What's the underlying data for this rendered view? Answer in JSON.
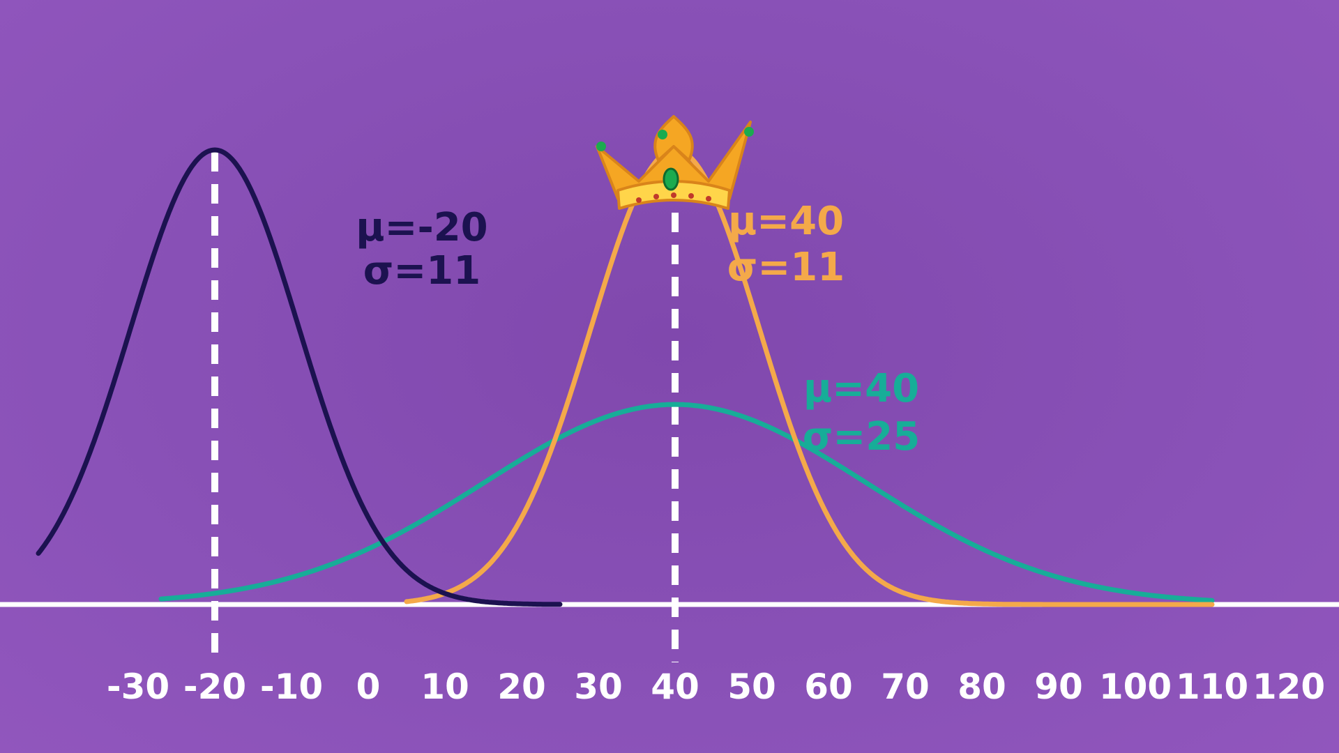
{
  "chart_data": {
    "type": "line",
    "title": "",
    "xlabel": "",
    "ylabel": "",
    "xlim": [
      -43,
      123
    ],
    "x_ticks": [
      -30,
      -20,
      -10,
      0,
      10,
      20,
      30,
      40,
      50,
      60,
      70,
      80,
      90,
      100,
      110,
      120
    ],
    "x_tick_labels": [
      "-30",
      "-20",
      "-10",
      "0",
      "10",
      "20",
      "30",
      "40",
      "50",
      "60",
      "70",
      "80",
      "90",
      "100",
      "110",
      "120"
    ],
    "grid": false,
    "legend": "none",
    "series": [
      {
        "name": "normal-mu-minus20-sigma11",
        "distribution": "normal",
        "mu": -20,
        "sigma": 11,
        "x_range": [
          -43,
          25
        ],
        "color": "#1c1250",
        "mu_label": "μ=-20",
        "sigma_label": "σ=11"
      },
      {
        "name": "normal-mu40-sigma11",
        "distribution": "normal",
        "mu": 40,
        "sigma": 11,
        "x_range": [
          5,
          110
        ],
        "color": "#f4a94a",
        "mu_label": "μ=40",
        "sigma_label": "σ=11"
      },
      {
        "name": "normal-mu40-sigma25",
        "distribution": "normal",
        "mu": 40,
        "sigma": 25,
        "x_range": [
          -27,
          110
        ],
        "color": "#17ad98",
        "mu_label": "μ=40",
        "sigma_label": "σ=25"
      }
    ],
    "mean_lines": [
      -20,
      40
    ],
    "annotations": [
      {
        "type": "crown-icon",
        "target_series": "normal-mu40-sigma11"
      }
    ]
  },
  "colors": {
    "background": "#8a4fb6",
    "axis": "#ffffff",
    "mean_line": "#ffffff",
    "crown_gold": "#f5a623",
    "crown_band": "#ffd54a",
    "gem_green": "#1bab4f",
    "gem_red": "#c0392b"
  }
}
